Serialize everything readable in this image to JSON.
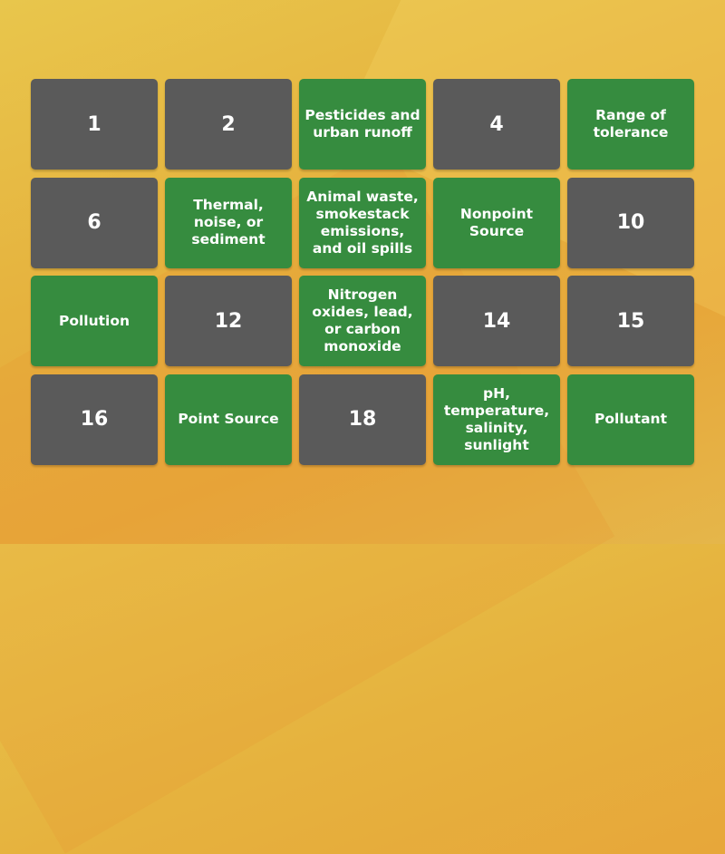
{
  "tiles": [
    {
      "text": "1",
      "kind": "number"
    },
    {
      "text": "2",
      "kind": "number"
    },
    {
      "text": "Pesticides and urban runoff",
      "kind": "answer"
    },
    {
      "text": "4",
      "kind": "number"
    },
    {
      "text": "Range of tolerance",
      "kind": "answer"
    },
    {
      "text": "6",
      "kind": "number"
    },
    {
      "text": "Thermal, noise, or sediment",
      "kind": "answer"
    },
    {
      "text": "Animal waste, smokestack emissions, and oil spills",
      "kind": "answer"
    },
    {
      "text": "Nonpoint Source",
      "kind": "answer"
    },
    {
      "text": "10",
      "kind": "number"
    },
    {
      "text": "Pollution",
      "kind": "answer"
    },
    {
      "text": "12",
      "kind": "number"
    },
    {
      "text": "Nitrogen oxides, lead, or carbon monoxide",
      "kind": "answer"
    },
    {
      "text": "14",
      "kind": "number"
    },
    {
      "text": "15",
      "kind": "number"
    },
    {
      "text": "16",
      "kind": "number"
    },
    {
      "text": "Point Source",
      "kind": "answer"
    },
    {
      "text": "18",
      "kind": "number"
    },
    {
      "text": "pH, temperature, salinity, sunlight",
      "kind": "answer"
    },
    {
      "text": "Pollutant",
      "kind": "answer"
    }
  ],
  "colors": {
    "number_tile": "#5a5a5a",
    "answer_tile": "#368c3f",
    "background": "#e6b23e"
  }
}
